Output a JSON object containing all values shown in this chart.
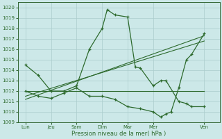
{
  "xlabel": "Pression niveau de la mer( hPa )",
  "bg_color": "#cce8e8",
  "grid_color": "#aacccc",
  "line_color": "#2d6a2d",
  "ylim": [
    1009,
    1020.5
  ],
  "yticks": [
    1009,
    1010,
    1011,
    1012,
    1013,
    1014,
    1015,
    1016,
    1017,
    1018,
    1019,
    1020
  ],
  "xtick_labels": [
    "Lun",
    "Jeu",
    "Sam",
    "Dim",
    "Mar",
    "Mer",
    "Ven"
  ],
  "xtick_positions": [
    0,
    1,
    2,
    3,
    4,
    5,
    7
  ],
  "xlim": [
    -0.3,
    7.6
  ],
  "series": [
    {
      "x": [
        0,
        0.5,
        1,
        1.5,
        2,
        2.5,
        3,
        3.2,
        3.5,
        4,
        4.3,
        4.5,
        5,
        5.3,
        5.5,
        6,
        6.3,
        6.5,
        7
      ],
      "y": [
        1014.5,
        1013.5,
        1012,
        1012,
        1012.5,
        1016,
        1018,
        1019.8,
        1019.3,
        1019.1,
        1014.3,
        1014.2,
        1012.5,
        1013,
        1013,
        1011,
        1010.8,
        1010.5,
        1010.5
      ],
      "marker": true
    },
    {
      "x": [
        0,
        0.5,
        1,
        1.5,
        2,
        2.5,
        3,
        3.5,
        4,
        4.5,
        5,
        5.3,
        5.5,
        5.7,
        6,
        6.3,
        6.5,
        7
      ],
      "y": [
        1012,
        1011.5,
        1011.3,
        1011.8,
        1012.3,
        1011.5,
        1011.5,
        1011.2,
        1010.5,
        1010.3,
        1010.0,
        1009.5,
        1009.8,
        1010.0,
        1012.3,
        1015.0,
        1015.5,
        1017.5
      ],
      "marker": true
    },
    {
      "x": [
        0,
        7
      ],
      "y": [
        1012,
        1012
      ],
      "marker": false
    },
    {
      "x": [
        0,
        7
      ],
      "y": [
        1011.5,
        1016.8
      ],
      "marker": false
    },
    {
      "x": [
        0,
        7
      ],
      "y": [
        1011.2,
        1017.3
      ],
      "marker": false
    }
  ]
}
